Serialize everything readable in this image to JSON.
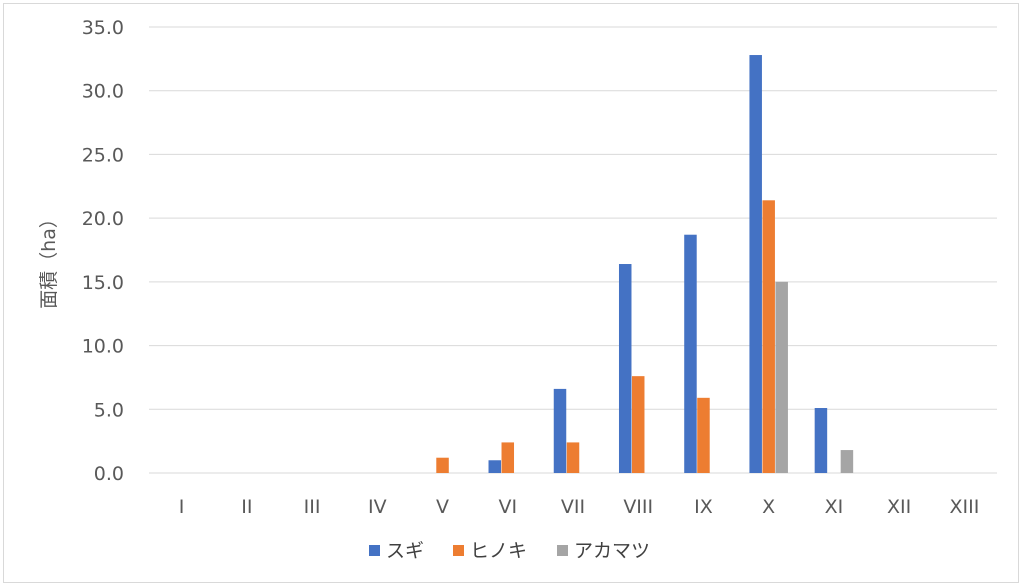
{
  "chart_data": {
    "type": "bar",
    "ylabel": "面積（ha）",
    "xlabel": "",
    "ylim": [
      0,
      35
    ],
    "yticks": [
      "0.0",
      "5.0",
      "10.0",
      "15.0",
      "20.0",
      "25.0",
      "30.0",
      "35.0"
    ],
    "grid": true,
    "legend_position": "bottom",
    "categories": [
      "I",
      "II",
      "III",
      "IV",
      "V",
      "VI",
      "VII",
      "VIII",
      "IX",
      "X",
      "XI",
      "XII",
      "XIII"
    ],
    "series": [
      {
        "name": "スギ",
        "color": "#4472C4",
        "values": [
          0,
          0,
          0,
          0,
          0,
          1.0,
          6.6,
          16.4,
          18.7,
          32.8,
          5.1,
          0,
          0
        ]
      },
      {
        "name": "ヒノキ",
        "color": "#ED7D31",
        "values": [
          0,
          0,
          0,
          0,
          1.2,
          2.4,
          2.4,
          7.6,
          5.9,
          21.4,
          0,
          0,
          0
        ]
      },
      {
        "name": "アカマツ",
        "color": "#A5A5A5",
        "values": [
          0,
          0,
          0,
          0,
          0,
          0,
          0,
          0,
          0,
          15.0,
          1.8,
          0,
          0
        ]
      }
    ]
  }
}
